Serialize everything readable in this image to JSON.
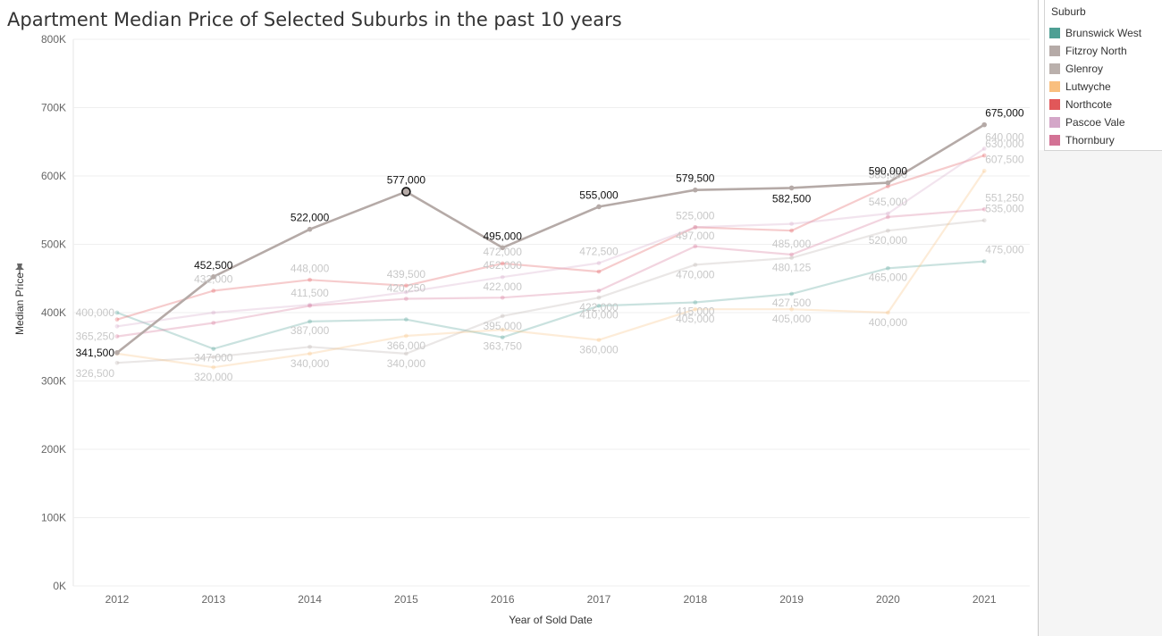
{
  "chart_data": {
    "type": "line",
    "title": "Apartment Median Price of Selected Suburbs in the past 10 years",
    "xlabel": "Year of Sold Date",
    "ylabel": "Median Price",
    "x": [
      "2012",
      "2013",
      "2014",
      "2015",
      "2016",
      "2017",
      "2018",
      "2019",
      "2020",
      "2021"
    ],
    "ylim": [
      0,
      800000
    ],
    "yticks": [
      {
        "value": 0,
        "label": "0K"
      },
      {
        "value": 100000,
        "label": "100K"
      },
      {
        "value": 200000,
        "label": "200K"
      },
      {
        "value": 300000,
        "label": "300K"
      },
      {
        "value": 400000,
        "label": "400K"
      },
      {
        "value": 500000,
        "label": "500K"
      },
      {
        "value": 600000,
        "label": "600K"
      },
      {
        "value": 700000,
        "label": "700K"
      },
      {
        "value": 800000,
        "label": "800K"
      }
    ],
    "highlighted_series": "Fitzroy North",
    "selected_point": {
      "series": "Fitzroy North",
      "x": "2015"
    },
    "legend": {
      "title": "Suburb",
      "position": "top-right"
    },
    "series": [
      {
        "name": "Brunswick West",
        "color": "#4e9f94",
        "values": [
          400000,
          347000,
          387000,
          390000,
          363750,
          410000,
          415000,
          427500,
          465000,
          475000
        ],
        "labels": [
          null,
          "347,000",
          "387,000",
          null,
          "363,750",
          "410,000",
          "415,000",
          "427,500",
          "465,000",
          "475,000"
        ]
      },
      {
        "name": "Fitzroy North",
        "color": "#b5aaa7",
        "values": [
          341500,
          452500,
          522000,
          577000,
          495000,
          555000,
          579500,
          582500,
          590000,
          675000
        ],
        "labels": [
          "341,500",
          "452,500",
          "522,000",
          "577,000",
          "495,000",
          "555,000",
          "579,500",
          "582,500",
          "590,000",
          "675,000"
        ]
      },
      {
        "name": "Glenroy",
        "color": "#bab0ac",
        "values": [
          326500,
          335000,
          350000,
          340000,
          395000,
          422000,
          470000,
          480125,
          520000,
          535000
        ],
        "labels": [
          "326,500",
          null,
          null,
          "340,000",
          "395,000",
          "422,000",
          "470,000",
          "480,125",
          "520,000",
          "535,000"
        ]
      },
      {
        "name": "Lutwyche",
        "color": "#f9bf7f",
        "values": [
          340000,
          320000,
          340000,
          366000,
          375000,
          360000,
          405000,
          405000,
          400000,
          607500
        ],
        "labels": [
          null,
          "320,000",
          "340,000",
          "366,000",
          null,
          "360,000",
          "405,000",
          "405,000",
          "400,000",
          "607,500"
        ]
      },
      {
        "name": "Northcote",
        "color": "#e15759",
        "values": [
          390000,
          432000,
          448000,
          439500,
          472000,
          460000,
          525000,
          520000,
          585000,
          630000
        ],
        "labels": [
          null,
          "432,000",
          "448,000",
          "439,500",
          "472,000",
          null,
          "525,000",
          null,
          "585,000",
          "630,000"
        ]
      },
      {
        "name": "Pascoe Vale",
        "color": "#d4a6c8",
        "values": [
          380000,
          400000,
          411500,
          430000,
          452000,
          472500,
          525000,
          530000,
          545000,
          640000
        ],
        "labels": [
          null,
          null,
          "411,500",
          null,
          "452,000",
          "472,500",
          null,
          null,
          "545,000",
          "640,000"
        ]
      },
      {
        "name": "Thornbury",
        "color": "#d37295",
        "values": [
          365250,
          385000,
          410000,
          420250,
          422000,
          432000,
          497000,
          485000,
          540000,
          551250
        ],
        "labels": [
          "365,250",
          null,
          null,
          "420,250",
          "422,000",
          null,
          "497,000",
          "485,000",
          null,
          "551,250"
        ]
      }
    ],
    "extra_labels": [
      {
        "series": "Brunswick West",
        "x": "2012",
        "text": "400,000"
      }
    ]
  }
}
